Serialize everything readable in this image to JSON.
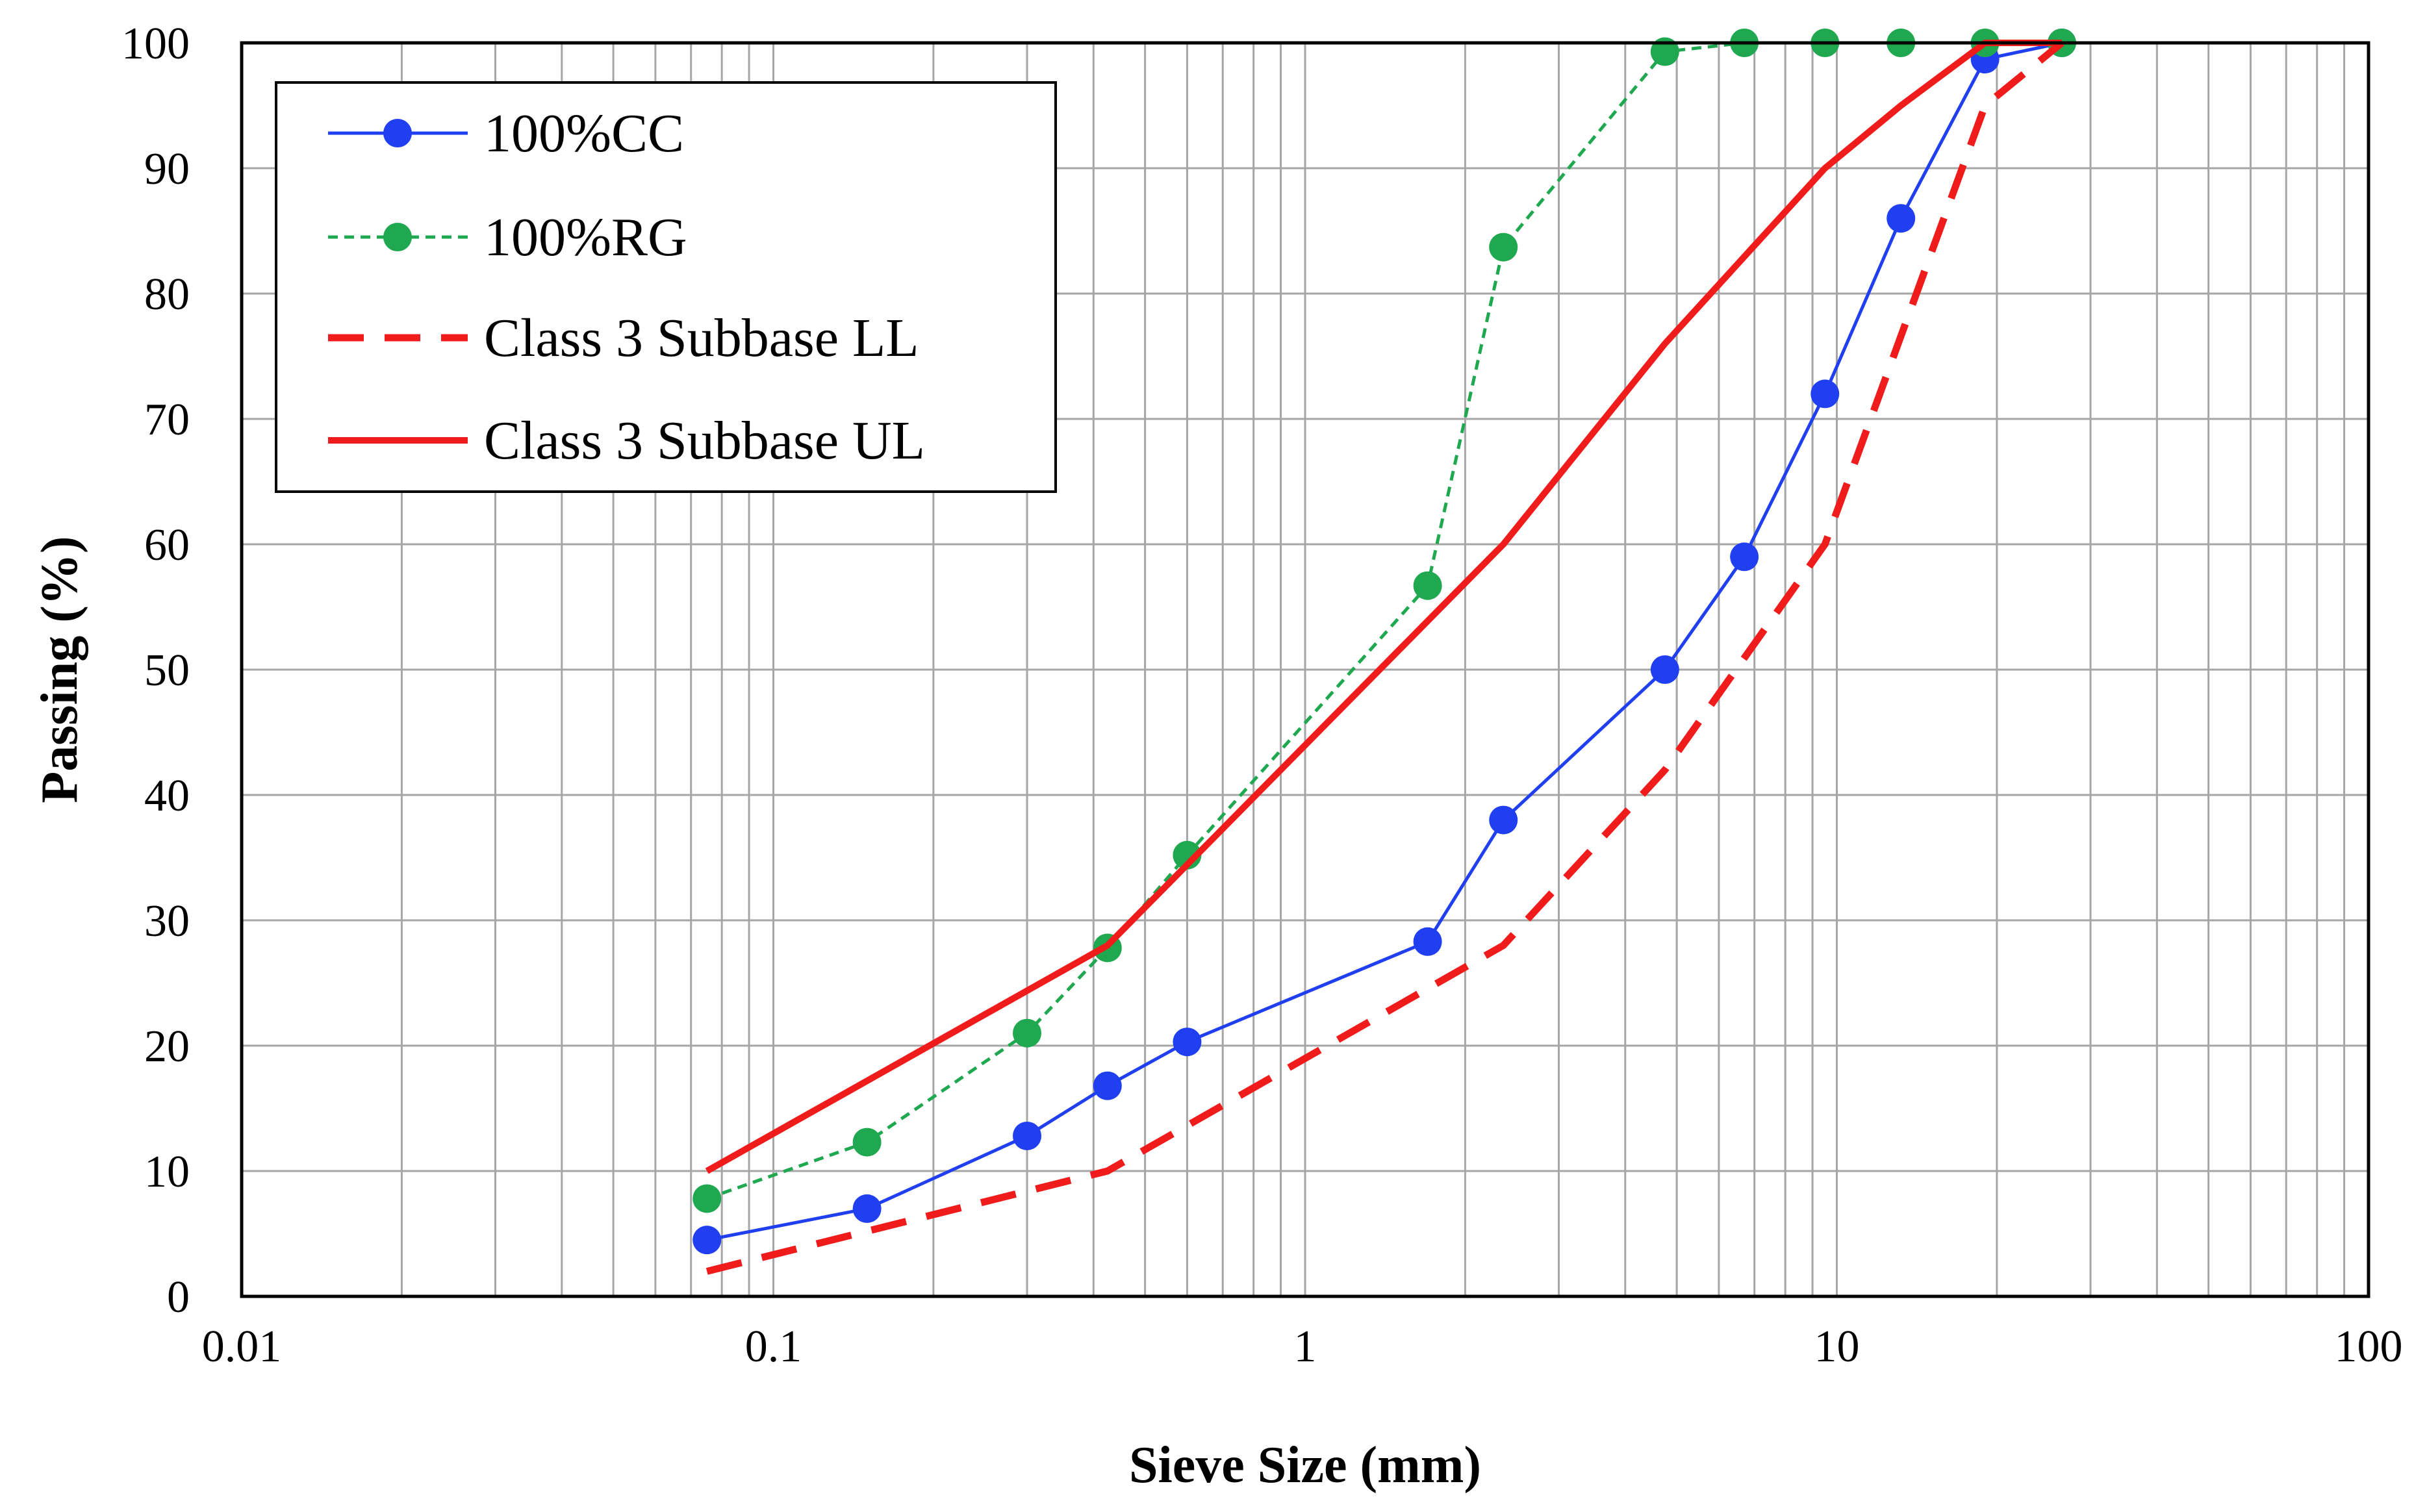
{
  "chart_data": {
    "type": "line",
    "xscale": "log",
    "xlabel": "Sieve Size (mm)",
    "ylabel": "Passing (%)",
    "xlim": [
      0.01,
      100
    ],
    "ylim": [
      0,
      100
    ],
    "grid": true,
    "legend_position": "top-left",
    "x_ticks": [
      {
        "value": 0.01,
        "label": "0.01"
      },
      {
        "value": 0.1,
        "label": "0.1"
      },
      {
        "value": 1,
        "label": "1"
      },
      {
        "value": 10,
        "label": "10"
      },
      {
        "value": 100,
        "label": "100"
      }
    ],
    "y_ticks": [
      {
        "value": 0,
        "label": "0"
      },
      {
        "value": 10,
        "label": "10"
      },
      {
        "value": 20,
        "label": "20"
      },
      {
        "value": 30,
        "label": "30"
      },
      {
        "value": 40,
        "label": "40"
      },
      {
        "value": 50,
        "label": "50"
      },
      {
        "value": 60,
        "label": "60"
      },
      {
        "value": 70,
        "label": "70"
      },
      {
        "value": 80,
        "label": "80"
      },
      {
        "value": 90,
        "label": "90"
      },
      {
        "value": 100,
        "label": "100"
      }
    ],
    "series": [
      {
        "name": "100%CC",
        "color": "#1f3ff0",
        "line_style": "solid",
        "marker": "circle",
        "x": [
          0.075,
          0.15,
          0.3,
          0.425,
          0.6,
          1.7,
          2.36,
          4.75,
          6.7,
          9.5,
          13.2,
          19,
          26.5
        ],
        "y": [
          4.5,
          7,
          12.8,
          16.8,
          20.3,
          28.3,
          38,
          50,
          59,
          72,
          86,
          98.7,
          100
        ]
      },
      {
        "name": "100%RG",
        "color": "#1fa84f",
        "line_style": "dotted",
        "marker": "circle",
        "x": [
          0.075,
          0.15,
          0.3,
          0.425,
          0.6,
          1.7,
          2.36,
          4.75,
          6.7,
          9.5,
          13.2,
          19,
          26.5
        ],
        "y": [
          7.8,
          12.3,
          21,
          27.8,
          35.2,
          56.7,
          83.7,
          99.3,
          100,
          100,
          100,
          100,
          100
        ]
      },
      {
        "name": "Class 3 Subbase LL",
        "color": "#f01c1c",
        "line_style": "dashed",
        "marker": "none",
        "x": [
          0.075,
          0.425,
          2.36,
          4.75,
          9.5,
          19,
          26.5
        ],
        "y": [
          2,
          10,
          28,
          42,
          60,
          95,
          100
        ]
      },
      {
        "name": "Class 3 Subbase UL",
        "color": "#f01c1c",
        "line_style": "solid",
        "marker": "none",
        "x": [
          0.075,
          0.425,
          2.36,
          4.75,
          9.5,
          13.2,
          19,
          26.5
        ],
        "y": [
          10,
          28,
          60,
          76,
          90,
          95,
          100,
          100
        ]
      }
    ]
  }
}
